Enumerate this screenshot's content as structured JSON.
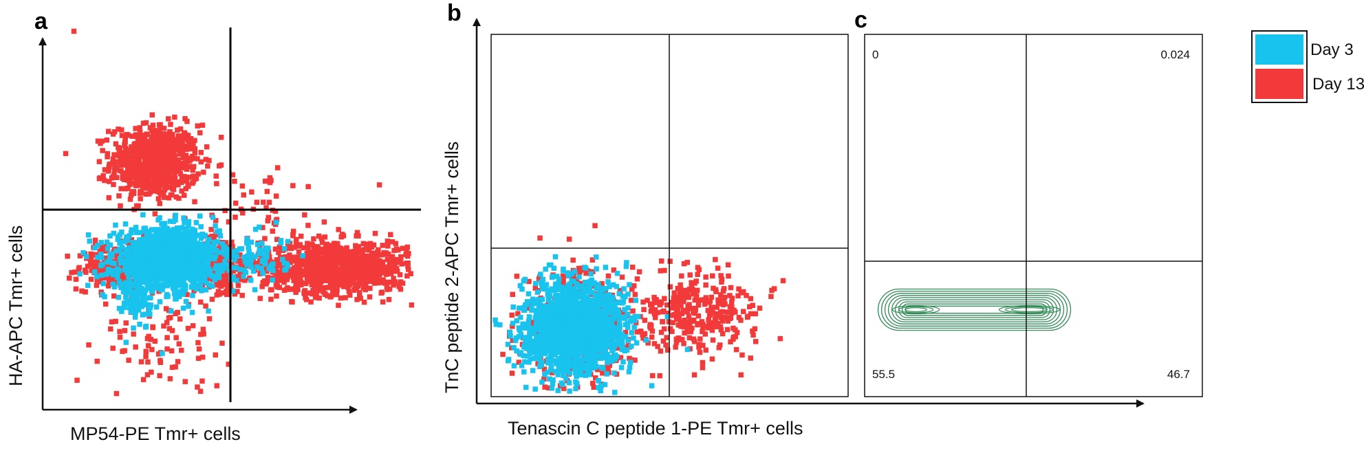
{
  "colors": {
    "day3": "#18C3EE",
    "day13": "#F23A3A",
    "contour": "#2F8A55",
    "axis": "#111111"
  },
  "legend": {
    "position": "top-right",
    "items": [
      {
        "label": "Day 3",
        "color": "#18C3EE"
      },
      {
        "label": "Day 13",
        "color": "#F23A3A"
      }
    ]
  },
  "chart_data": [
    {
      "panel": "a",
      "type": "scatter",
      "xlabel": "MP54-PE Tmr+ cells",
      "ylabel": "HA-APC Tmr+ cells",
      "xlim": [
        0,
        100
      ],
      "ylim": [
        0,
        100
      ],
      "grid": false,
      "gates": {
        "x": 50,
        "y": 51
      },
      "series": [
        {
          "name": "Day 13",
          "color": "#F23A3A",
          "clusters": [
            {
              "cx": 29,
              "cy": 64,
              "sx": 6,
              "sy": 5,
              "n": 700
            },
            {
              "cx": 18,
              "cy": 36,
              "sx": 5,
              "sy": 3,
              "n": 220
            },
            {
              "cx": 47,
              "cy": 36,
              "sx": 4,
              "sy": 4,
              "n": 200
            },
            {
              "cx": 78,
              "cy": 36,
              "sx": 10,
              "sy": 3.5,
              "n": 1000
            },
            {
              "cx": 32,
              "cy": 18,
              "sx": 9,
              "sy": 7,
              "n": 90
            },
            {
              "cx": 58,
              "cy": 48,
              "sx": 8,
              "sy": 8,
              "n": 60
            }
          ],
          "points": [
            [
              7,
              99
            ],
            [
              28,
              8
            ],
            [
              62,
              55
            ],
            [
              90,
              58
            ],
            [
              42,
              12
            ]
          ]
        },
        {
          "name": "Day 3",
          "color": "#18C3EE",
          "clusters": [
            {
              "cx": 32,
              "cy": 38,
              "sx": 7,
              "sy": 4,
              "n": 1300
            },
            {
              "cx": 24,
              "cy": 27,
              "sx": 2,
              "sy": 4,
              "n": 80
            },
            {
              "cx": 57,
              "cy": 38,
              "sx": 4,
              "sy": 3,
              "n": 80
            }
          ],
          "points": [
            [
              31,
              13
            ],
            [
              62,
              48
            ]
          ]
        }
      ]
    },
    {
      "panel": "b",
      "type": "scatter",
      "xlabel": "Tenascin C peptide 1-PE Tmr+ cells",
      "ylabel": "TnC peptide 2-APC Tmr+ cells",
      "xlim": [
        0,
        100
      ],
      "ylim": [
        0,
        100
      ],
      "grid": false,
      "gates": {
        "x": 50,
        "y": 41
      },
      "series": [
        {
          "name": "Day 13",
          "color": "#F23A3A",
          "clusters": [
            {
              "cx": 24,
              "cy": 19,
              "sx": 8,
              "sy": 8,
              "n": 400
            },
            {
              "cx": 58,
              "cy": 23,
              "sx": 9,
              "sy": 6,
              "n": 320
            }
          ],
          "points": [
            [
              81,
              16
            ],
            [
              70,
              6
            ],
            [
              8,
              12
            ]
          ]
        },
        {
          "name": "Day 3",
          "color": "#18C3EE",
          "clusters": [
            {
              "cx": 23,
              "cy": 19,
              "sx": 7,
              "sy": 6.5,
              "n": 1500
            }
          ],
          "points": [
            [
              22,
              1.5
            ],
            [
              30,
              2.5
            ],
            [
              45,
              3
            ],
            [
              55,
              13
            ]
          ]
        }
      ]
    },
    {
      "panel": "c",
      "type": "contour",
      "gates": {
        "x": 45,
        "y": 38
      },
      "quadrant_values": {
        "upper_left": "0",
        "upper_right": "0.024",
        "lower_left": "55.5",
        "lower_right": "46.7"
      },
      "contour_band": {
        "x_from": 4,
        "x_to": 61,
        "y_center": 24
      }
    }
  ]
}
